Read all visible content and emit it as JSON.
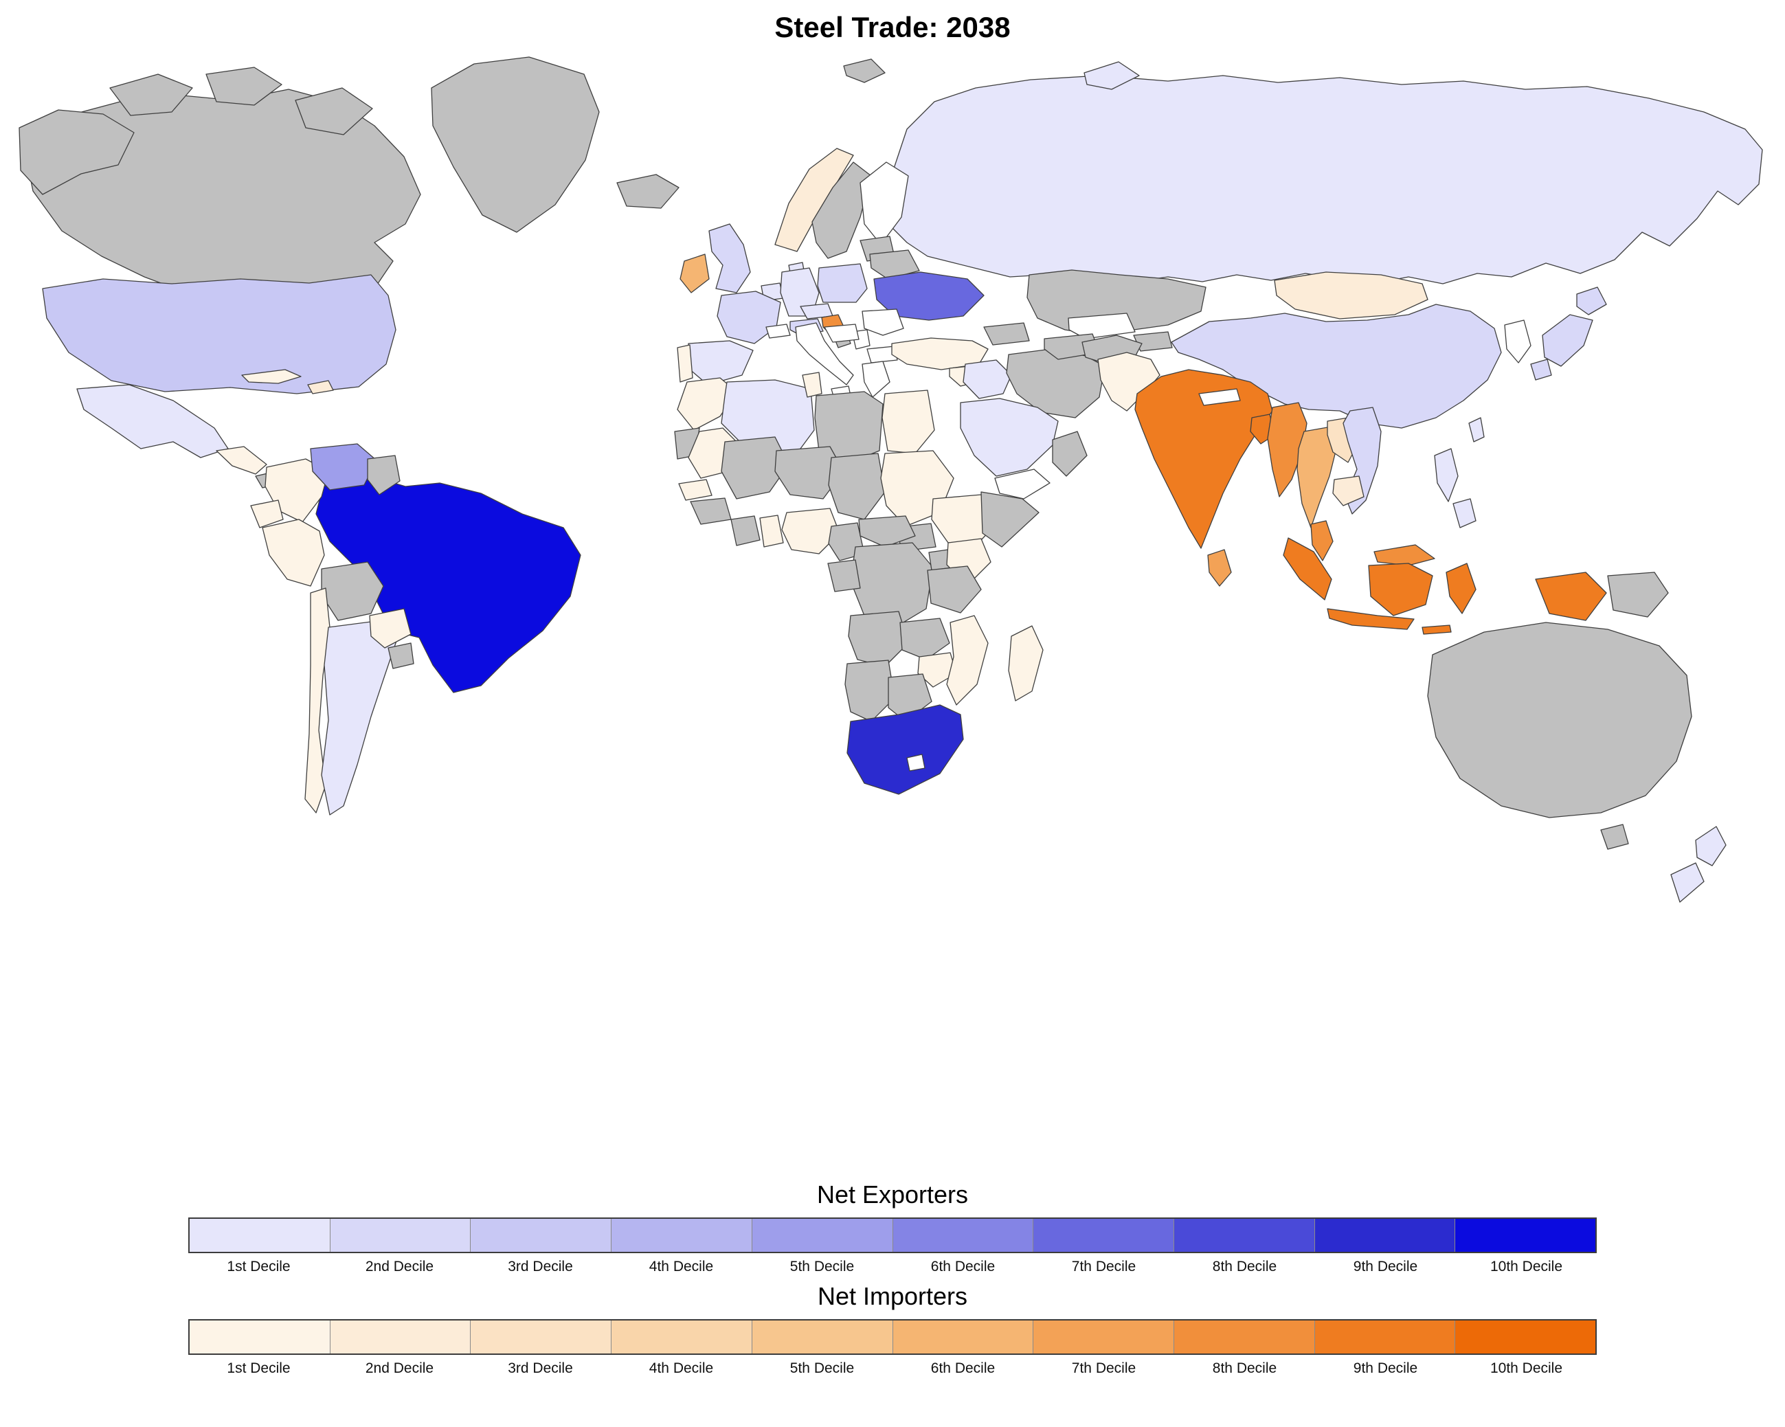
{
  "title": "Steel Trade: 2038",
  "map": {
    "no_data_color": "#c0c0c0",
    "neutral_color": "#ffffff",
    "border_color": "#3f3f3f",
    "ocean_color": "#ffffff",
    "countries": {
      "greenland": {
        "label": "Greenland",
        "type": "none"
      },
      "canada": {
        "label": "Canada",
        "type": "none"
      },
      "alaska": {
        "label": "Alaska (US)",
        "type": "none"
      },
      "canadian-arctic": {
        "label": "Canadian Arctic Islands",
        "type": "none"
      },
      "usa": {
        "label": "United States",
        "type": "exporter",
        "decile": 3
      },
      "mexico": {
        "label": "Mexico",
        "type": "exporter",
        "decile": 1
      },
      "central-america": {
        "label": "Central America",
        "type": "importer",
        "decile": 1
      },
      "panama": {
        "label": "Panama",
        "type": "none"
      },
      "cuba": {
        "label": "Cuba",
        "type": "importer",
        "decile": 1
      },
      "hispaniola": {
        "label": "Hispaniola",
        "type": "importer",
        "decile": 2
      },
      "colombia": {
        "label": "Colombia",
        "type": "importer",
        "decile": 1
      },
      "venezuela": {
        "label": "Venezuela",
        "type": "exporter",
        "decile": 5
      },
      "guyana": {
        "label": "Guyana/Suriname",
        "type": "none"
      },
      "ecuador": {
        "label": "Ecuador",
        "type": "importer",
        "decile": 1
      },
      "peru": {
        "label": "Peru",
        "type": "importer",
        "decile": 1
      },
      "brazil": {
        "label": "Brazil",
        "type": "exporter",
        "decile": 10
      },
      "bolivia": {
        "label": "Bolivia",
        "type": "none"
      },
      "paraguay": {
        "label": "Paraguay",
        "type": "importer",
        "decile": 1
      },
      "chile": {
        "label": "Chile",
        "type": "importer",
        "decile": 1
      },
      "argentina": {
        "label": "Argentina",
        "type": "exporter",
        "decile": 1
      },
      "uruguay": {
        "label": "Uruguay",
        "type": "none"
      },
      "iceland": {
        "label": "Iceland",
        "type": "none"
      },
      "ireland": {
        "label": "Ireland",
        "type": "importer",
        "decile": 6
      },
      "uk": {
        "label": "United Kingdom",
        "type": "exporter",
        "decile": 2
      },
      "norway": {
        "label": "Norway",
        "type": "importer",
        "decile": 2
      },
      "sweden": {
        "label": "Sweden",
        "type": "none"
      },
      "finland": {
        "label": "Finland",
        "type": "neutral"
      },
      "denmark": {
        "label": "Denmark",
        "type": "exporter",
        "decile": 1
      },
      "benelux": {
        "label": "Benelux",
        "type": "exporter",
        "decile": 1
      },
      "france": {
        "label": "France",
        "type": "exporter",
        "decile": 2
      },
      "spain": {
        "label": "Spain",
        "type": "exporter",
        "decile": 1
      },
      "portugal": {
        "label": "Portugal",
        "type": "importer",
        "decile": 1
      },
      "germany": {
        "label": "Germany",
        "type": "exporter",
        "decile": 1
      },
      "poland": {
        "label": "Poland",
        "type": "exporter",
        "decile": 2
      },
      "czechia": {
        "label": "Czechia",
        "type": "exporter",
        "decile": 1
      },
      "austria": {
        "label": "Austria",
        "type": "exporter",
        "decile": 2
      },
      "switzerland": {
        "label": "Switzerland",
        "type": "neutral"
      },
      "italy": {
        "label": "Italy",
        "type": "neutral"
      },
      "croatia": {
        "label": "Croatia",
        "type": "importer",
        "decile": 8
      },
      "bosnia": {
        "label": "Bosnia",
        "type": "none"
      },
      "serbia": {
        "label": "Serbia",
        "type": "neutral"
      },
      "hungary": {
        "label": "Hungary",
        "type": "neutral"
      },
      "romania": {
        "label": "Romania",
        "type": "neutral"
      },
      "bulgaria": {
        "label": "Bulgaria",
        "type": "neutral"
      },
      "greece": {
        "label": "Greece",
        "type": "neutral"
      },
      "baltics": {
        "label": "Baltic States",
        "type": "none"
      },
      "belarus": {
        "label": "Belarus",
        "type": "none"
      },
      "ukraine": {
        "label": "Ukraine",
        "type": "exporter",
        "decile": 7
      },
      "russia": {
        "label": "Russia",
        "type": "exporter",
        "decile": 1
      },
      "svalbard": {
        "label": "Svalbard",
        "type": "none"
      },
      "turkey": {
        "label": "Turkey",
        "type": "importer",
        "decile": 1
      },
      "syria": {
        "label": "Syria",
        "type": "importer",
        "decile": 1
      },
      "iraq": {
        "label": "Iraq",
        "type": "exporter",
        "decile": 1
      },
      "iran": {
        "label": "Iran",
        "type": "none"
      },
      "saudi-arabia": {
        "label": "Saudi Arabia",
        "type": "exporter",
        "decile": 1
      },
      "yemen": {
        "label": "Yemen",
        "type": "neutral"
      },
      "oman": {
        "label": "Oman",
        "type": "none"
      },
      "caucasus": {
        "label": "Caucasus",
        "type": "none"
      },
      "kazakhstan": {
        "label": "Kazakhstan",
        "type": "none"
      },
      "uzbekistan": {
        "label": "Uzbekistan",
        "type": "neutral"
      },
      "turkmenistan": {
        "label": "Turkmenistan",
        "type": "none"
      },
      "kyrgyzstan": {
        "label": "Kyrgyzstan/Tajikistan",
        "type": "none"
      },
      "afghanistan": {
        "label": "Afghanistan",
        "type": "none"
      },
      "pakistan": {
        "label": "Pakistan",
        "type": "importer",
        "decile": 1
      },
      "india": {
        "label": "India",
        "type": "importer",
        "decile": 9
      },
      "nepal": {
        "label": "Nepal",
        "type": "neutral"
      },
      "sri-lanka": {
        "label": "Sri Lanka",
        "type": "importer",
        "decile": 7
      },
      "bangladesh": {
        "label": "Bangladesh",
        "type": "importer",
        "decile": 9
      },
      "myanmar": {
        "label": "Myanmar",
        "type": "importer",
        "decile": 8
      },
      "thailand": {
        "label": "Thailand",
        "type": "importer",
        "decile": 6
      },
      "laos": {
        "label": "Laos",
        "type": "importer",
        "decile": 3
      },
      "cambodia": {
        "label": "Cambodia",
        "type": "importer",
        "decile": 2
      },
      "vietnam": {
        "label": "Vietnam",
        "type": "exporter",
        "decile": 2
      },
      "malaysia": {
        "label": "Malaysia",
        "type": "importer",
        "decile": 8
      },
      "indonesia": {
        "label": "Indonesia",
        "type": "importer",
        "decile": 9
      },
      "png": {
        "label": "Papua New Guinea",
        "type": "none"
      },
      "philippines": {
        "label": "Philippines",
        "type": "exporter",
        "decile": 1
      },
      "taiwan": {
        "label": "Taiwan",
        "type": "exporter",
        "decile": 1
      },
      "china": {
        "label": "China",
        "type": "exporter",
        "decile": 2
      },
      "mongolia": {
        "label": "Mongolia",
        "type": "importer",
        "decile": 2
      },
      "korea": {
        "label": "Korea",
        "type": "neutral"
      },
      "japan": {
        "label": "Japan",
        "type": "exporter",
        "decile": 2
      },
      "morocco": {
        "label": "Morocco",
        "type": "importer",
        "decile": 1
      },
      "western-sahara": {
        "label": "Western Sahara",
        "type": "none"
      },
      "algeria": {
        "label": "Algeria",
        "type": "exporter",
        "decile": 1
      },
      "tunisia": {
        "label": "Tunisia",
        "type": "importer",
        "decile": 1
      },
      "libya": {
        "label": "Libya",
        "type": "none"
      },
      "egypt": {
        "label": "Egypt",
        "type": "importer",
        "decile": 1
      },
      "mauritania": {
        "label": "Mauritania",
        "type": "importer",
        "decile": 1
      },
      "mali": {
        "label": "Mali",
        "type": "none"
      },
      "niger": {
        "label": "Niger",
        "type": "none"
      },
      "chad": {
        "label": "Chad",
        "type": "none"
      },
      "sudan": {
        "label": "Sudan",
        "type": "importer",
        "decile": 1
      },
      "ethiopia": {
        "label": "Ethiopia",
        "type": "importer",
        "decile": 1
      },
      "somalia": {
        "label": "Somalia",
        "type": "none"
      },
      "south-sudan": {
        "label": "South Sudan",
        "type": "none"
      },
      "senegal": {
        "label": "Senegal",
        "type": "importer",
        "decile": 1
      },
      "guinea": {
        "label": "Guinea",
        "type": "none"
      },
      "ivory-coast": {
        "label": "Ivory Coast",
        "type": "none"
      },
      "ghana": {
        "label": "Ghana",
        "type": "importer",
        "decile": 1
      },
      "nigeria": {
        "label": "Nigeria",
        "type": "importer",
        "decile": 1
      },
      "cameroon": {
        "label": "Cameroon",
        "type": "none"
      },
      "car": {
        "label": "Central African Republic",
        "type": "none"
      },
      "gabon-congo": {
        "label": "Gabon/Congo",
        "type": "none"
      },
      "drc": {
        "label": "DR Congo",
        "type": "none"
      },
      "uganda": {
        "label": "Uganda",
        "type": "none"
      },
      "kenya": {
        "label": "Kenya",
        "type": "importer",
        "decile": 1
      },
      "tanzania": {
        "label": "Tanzania",
        "type": "none"
      },
      "angola": {
        "label": "Angola",
        "type": "none"
      },
      "zambia": {
        "label": "Zambia",
        "type": "none"
      },
      "zimbabwe": {
        "label": "Zimbabwe",
        "type": "importer",
        "decile": 1
      },
      "mozambique": {
        "label": "Mozambique",
        "type": "importer",
        "decile": 1
      },
      "namibia": {
        "label": "Namibia",
        "type": "none"
      },
      "botswana": {
        "label": "Botswana",
        "type": "none"
      },
      "south-africa": {
        "label": "South Africa",
        "type": "exporter",
        "decile": 9
      },
      "lesotho": {
        "label": "Lesotho",
        "type": "neutral"
      },
      "madagascar": {
        "label": "Madagascar",
        "type": "importer",
        "decile": 1
      },
      "australia": {
        "label": "Australia",
        "type": "none"
      },
      "new-zealand": {
        "label": "New Zealand",
        "type": "exporter",
        "decile": 1
      }
    }
  },
  "legends": [
    {
      "id": "exporters",
      "title": "Net Exporters",
      "colors": [
        "#e6e6fb",
        "#d8d8f8",
        "#c8c8f4",
        "#b5b5f0",
        "#9e9eeb",
        "#8484e5",
        "#6868df",
        "#4a4ad8",
        "#2b2bcf",
        "#0b0bdf"
      ],
      "labels": [
        "1st Decile",
        "2nd Decile",
        "3rd Decile",
        "4th Decile",
        "5th Decile",
        "6th Decile",
        "7th Decile",
        "8th Decile",
        "9th Decile",
        "10th Decile"
      ]
    },
    {
      "id": "importers",
      "title": "Net Importers",
      "colors": [
        "#fdf4e7",
        "#fcecd8",
        "#fbe2c4",
        "#f9d5aa",
        "#f7c68e",
        "#f5b572",
        "#f3a256",
        "#f18f3b",
        "#ef7c20",
        "#ed6a07"
      ],
      "labels": [
        "1st Decile",
        "2nd Decile",
        "3rd Decile",
        "4th Decile",
        "5th Decile",
        "6th Decile",
        "7th Decile",
        "8th Decile",
        "9th Decile",
        "10th Decile"
      ]
    }
  ]
}
